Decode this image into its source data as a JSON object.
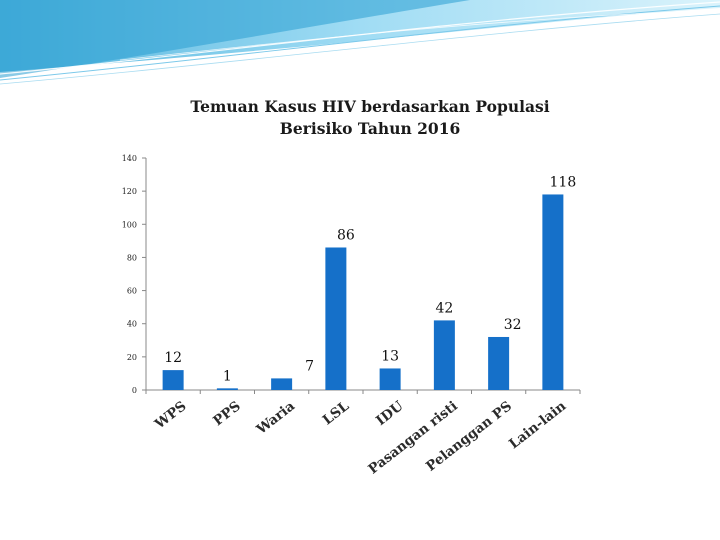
{
  "colors": {
    "bar": "#1570c9",
    "axis": "#888888",
    "header_light": "#bfe7f7",
    "header_mid": "#5fc3ea"
  },
  "chart_data": {
    "type": "bar",
    "title": "Temuan Kasus HIV berdasarkan Populasi",
    "subtitle": "Berisiko Tahun 2016",
    "categories": [
      "WPS",
      "PPS",
      "Waria",
      "LSL",
      "IDU",
      "Pasangan risti",
      "Pelanggan PS",
      "Lain-lain"
    ],
    "values": [
      12,
      1,
      7,
      86,
      13,
      42,
      32,
      118
    ],
    "data_labels": [
      "12",
      "1",
      "7",
      "86",
      "13",
      "42",
      "32",
      "118"
    ],
    "ylim": [
      0,
      140
    ],
    "yticks": [
      "0",
      "20",
      "40",
      "60",
      "80",
      "100",
      "120",
      "140"
    ],
    "grid": false,
    "xlabel": "",
    "ylabel": ""
  }
}
